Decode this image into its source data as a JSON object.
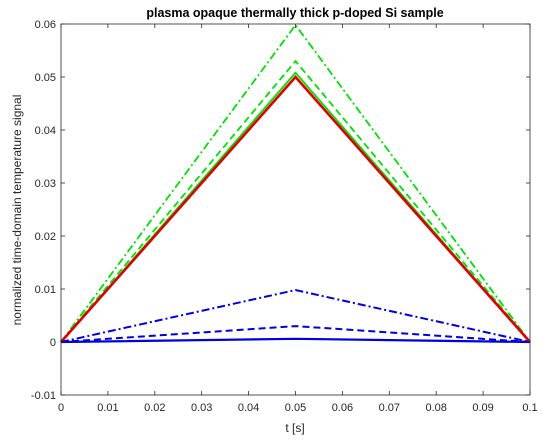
{
  "chart_data": {
    "type": "line",
    "title": "plasma opaque thermally thick p-doped Si sample",
    "xlabel": "t [s]",
    "ylabel": "normalized time-domain temperature signal",
    "xlim": [
      0,
      0.1
    ],
    "ylim": [
      -0.01,
      0.06
    ],
    "xticks": [
      0,
      0.01,
      0.02,
      0.03,
      0.04,
      0.05,
      0.06,
      0.07,
      0.08,
      0.09,
      0.1
    ],
    "xtick_labels": [
      "0",
      "0.01",
      "0.02",
      "0.03",
      "0.04",
      "0.05",
      "0.06",
      "0.07",
      "0.08",
      "0.09",
      "0.1"
    ],
    "yticks": [
      -0.01,
      0,
      0.01,
      0.02,
      0.03,
      0.04,
      0.05,
      0.06
    ],
    "ytick_labels": [
      "-0.01",
      "0",
      "0.01",
      "0.02",
      "0.03",
      "0.04",
      "0.05",
      "0.06"
    ],
    "grid": false,
    "box": true,
    "series": [
      {
        "color": "#00e000",
        "dash": "dashdot",
        "width": 1.8,
        "x": [
          0,
          0.05,
          0.1
        ],
        "y": [
          0,
          0.0598,
          0
        ]
      },
      {
        "color": "#00e000",
        "dash": "dashed",
        "width": 1.8,
        "x": [
          0,
          0.05,
          0.1
        ],
        "y": [
          0,
          0.053,
          0
        ]
      },
      {
        "color": "#00e000",
        "dash": "solid",
        "width": 1.8,
        "x": [
          0,
          0.05,
          0.1
        ],
        "y": [
          0,
          0.0508,
          0
        ]
      },
      {
        "color": "#e00000",
        "dash": "solid",
        "width": 2.6,
        "x": [
          0,
          0.05,
          0.1
        ],
        "y": [
          0,
          0.05,
          0
        ]
      },
      {
        "color": "#0000e0",
        "dash": "dashdot",
        "width": 2.0,
        "x": [
          0,
          0.05,
          0.1
        ],
        "y": [
          0,
          0.0098,
          0
        ]
      },
      {
        "color": "#0000e0",
        "dash": "dashed",
        "width": 2.0,
        "x": [
          0,
          0.05,
          0.1
        ],
        "y": [
          0,
          0.003,
          0
        ]
      },
      {
        "color": "#0000e0",
        "dash": "solid",
        "width": 2.2,
        "x": [
          0,
          0.05,
          0.1
        ],
        "y": [
          0,
          0.0006,
          0
        ]
      }
    ]
  }
}
